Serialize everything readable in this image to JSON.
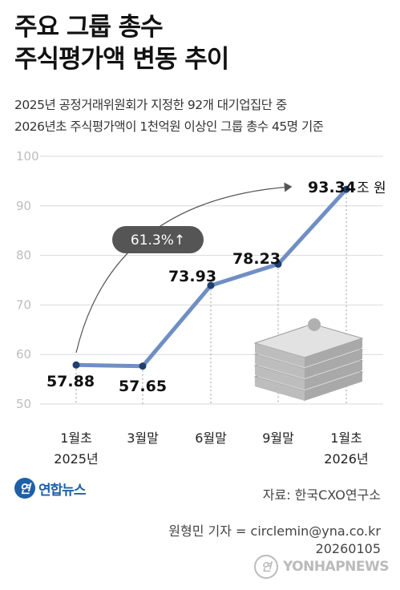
{
  "title": {
    "line1": "주요 그룹 총수",
    "line2": "주식평가액 변동 추이"
  },
  "subtitle": {
    "line1": "2025년 공정거래위원회가 지정한 92개 대기업집단 중",
    "line2": "2026년초 주식평가액이 1천억원 이상인 그룹 총수 45명 기준"
  },
  "chart_data": {
    "type": "line",
    "categories": [
      [
        "1월초",
        "2025년"
      ],
      [
        "3월말",
        ""
      ],
      [
        "6월말",
        ""
      ],
      [
        "9월말",
        ""
      ],
      [
        "1월초",
        "2026년"
      ]
    ],
    "values": [
      57.88,
      57.65,
      73.93,
      78.23,
      93.34
    ],
    "value_labels": [
      "57.88",
      "57.65",
      "73.93",
      "78.23",
      "93.34"
    ],
    "last_value_unit": "조 원",
    "ylim": [
      50,
      100
    ],
    "yticks": [
      50,
      60,
      70,
      80,
      90,
      100
    ],
    "grid": true,
    "annotation": "61.3%↑",
    "line_color": "#6f8fc4",
    "marker_color": "#1f3f6e",
    "grid_color": "#d9d9d9",
    "tick_color": "#bdbdbd"
  },
  "footer": {
    "logo_mark": "연",
    "logo_text": "연합뉴스",
    "source": "자료: 한국CXO연구소",
    "reporter": "원형민 기자 = circlemin@yna.co.kr",
    "date": "20260105",
    "watermark": "YONHAPNEWS"
  }
}
